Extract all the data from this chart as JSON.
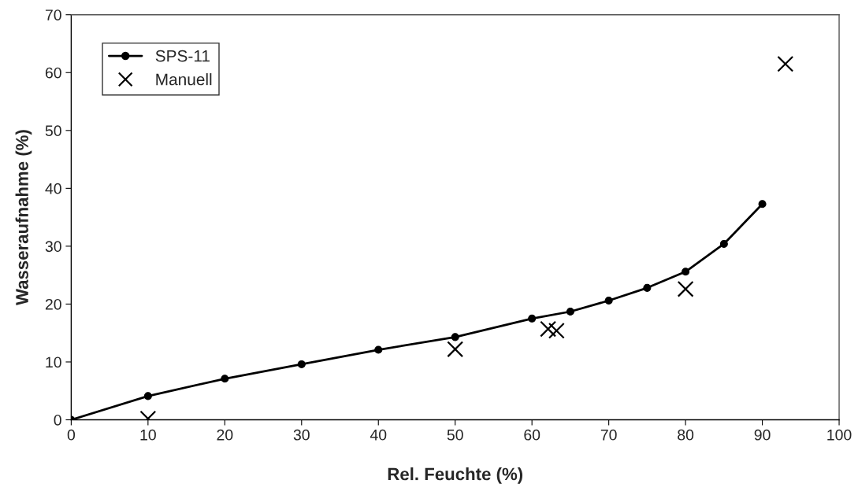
{
  "chart_data": {
    "type": "line",
    "xlabel": "Rel. Feuchte (%)",
    "ylabel": "Wasseraufnahme (%)",
    "xlim": [
      0,
      100
    ],
    "xticks": [
      0,
      10,
      20,
      30,
      40,
      50,
      60,
      70,
      80,
      90,
      100
    ],
    "ylim": [
      0,
      70
    ],
    "yticks": [
      0,
      10,
      20,
      30,
      40,
      50,
      60,
      70
    ],
    "grid": false,
    "legend": "top left",
    "series": [
      {
        "name": "SPS-11",
        "color": "#000000",
        "marker": "circle",
        "line_style": "solid",
        "x": [
          0,
          10,
          20,
          30,
          40,
          50,
          60,
          65,
          70,
          75,
          80,
          85,
          90
        ],
        "values": [
          0,
          4.1,
          7.1,
          9.6,
          12.1,
          14.3,
          17.5,
          18.7,
          20.6,
          22.8,
          25.6,
          30.4,
          37.3
        ]
      },
      {
        "name": "Manuell",
        "type": "scatter",
        "color": "#000000",
        "marker": "cross",
        "x": [
          10,
          50,
          62.1,
          63.2,
          80,
          93.0
        ],
        "values": [
          0.2,
          12.2,
          15.7,
          15.4,
          22.6,
          61.5
        ]
      }
    ]
  }
}
